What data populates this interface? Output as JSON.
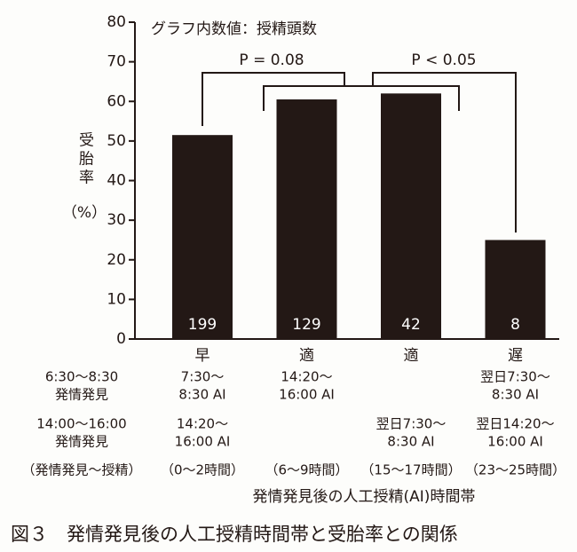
{
  "chart_data": {
    "type": "bar",
    "note": "グラフ内数値：授精頭数",
    "ylabel": "受胎率",
    "ylabel_unit": "（%）",
    "categories": [
      "早",
      "適",
      "適",
      "遅"
    ],
    "values": [
      51.5,
      60.5,
      62,
      25
    ],
    "bar_labels": [
      199,
      129,
      42,
      8
    ],
    "color": "#231815",
    "ylim": [
      0,
      80
    ],
    "yticks": [
      0,
      10,
      20,
      30,
      40,
      50,
      60,
      70,
      80
    ],
    "comparisons": [
      "P = 0.08",
      "P < 0.05"
    ],
    "row_labels": [
      [
        "6:30～8:30",
        "発情発見"
      ],
      [
        "14:00～16:00",
        "発情発見"
      ],
      [
        "（発情発見～授精）"
      ]
    ],
    "rows": [
      [
        [
          "7:30～",
          "8:30 AI"
        ],
        [
          "14:20～",
          "16:00 AI"
        ],
        null,
        [
          "翌日7:30～",
          "8:30 AI"
        ]
      ],
      [
        [
          "14:20～",
          "16:00 AI"
        ],
        null,
        [
          "翌日7:30～",
          "8:30 AI"
        ],
        [
          "翌日14:20～",
          "16:00 AI"
        ]
      ],
      [
        [
          "（0～2時間）"
        ],
        [
          "（6～9時間）"
        ],
        [
          "（15～17時間）"
        ],
        [
          "（23～25時間）"
        ]
      ]
    ],
    "xlabel": "発情発見後の人工授精(AI)時間帯",
    "caption": "図３　発情発見後の人工授精時間帯と受胎率との関係"
  }
}
